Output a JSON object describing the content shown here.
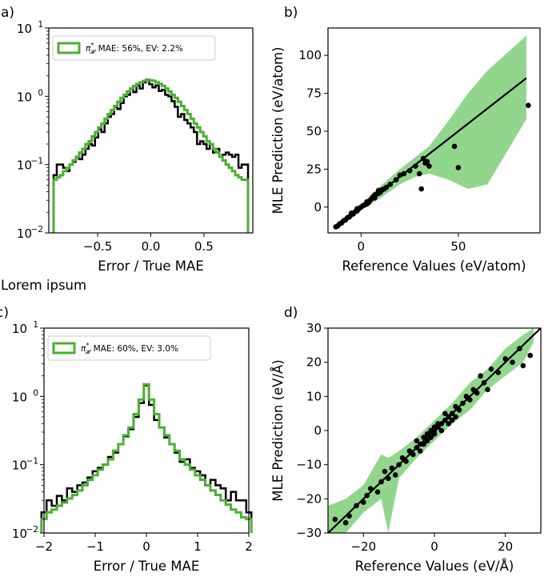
{
  "figure_note": "Lorem ipsum",
  "chart_data": [
    {
      "panel": "a)",
      "type": "line",
      "xlabel": "Error / True MAE",
      "ylabel": "",
      "xlim": [
        -0.96,
        0.96
      ],
      "ylim": [
        0.01,
        10
      ],
      "yscale": "log",
      "xticks": [
        -0.5,
        0.0,
        0.5
      ],
      "xtick_labels": [
        "−0.5",
        "0.0",
        "0.5"
      ],
      "yticks": [
        0.01,
        0.1,
        1,
        10
      ],
      "ytick_labels": [
        "10",
        "10",
        "10",
        "10"
      ],
      "ytick_exps": [
        "−2",
        "−1",
        "0",
        "1"
      ],
      "grid": false,
      "legend": {
        "position": "top-left",
        "label": "MAE: 56%, EV: 2.2%",
        "symbol": "π",
        "symbol_sup": "*",
        "symbol_sub": "𝓗"
      },
      "series": [
        {
          "name": "",
          "color": "#000000",
          "step": true,
          "x": [
            -0.9,
            -0.87,
            -0.84,
            -0.81,
            -0.78,
            -0.75,
            -0.72,
            -0.69,
            -0.66,
            -0.63,
            -0.6,
            -0.57,
            -0.54,
            -0.51,
            -0.48,
            -0.45,
            -0.42,
            -0.39,
            -0.36,
            -0.33,
            -0.3,
            -0.27,
            -0.24,
            -0.21,
            -0.18,
            -0.15,
            -0.12,
            -0.09,
            -0.06,
            -0.03,
            0.0,
            0.03,
            0.06,
            0.09,
            0.12,
            0.15,
            0.18,
            0.21,
            0.24,
            0.27,
            0.3,
            0.33,
            0.36,
            0.39,
            0.42,
            0.45,
            0.48,
            0.51,
            0.54,
            0.57,
            0.6,
            0.63,
            0.66,
            0.69,
            0.72,
            0.75,
            0.78,
            0.81,
            0.84,
            0.87,
            0.9
          ],
          "y": [
            0.07,
            0.1,
            0.1,
            0.09,
            0.08,
            0.1,
            0.11,
            0.13,
            0.12,
            0.14,
            0.17,
            0.2,
            0.19,
            0.25,
            0.33,
            0.3,
            0.4,
            0.5,
            0.55,
            0.7,
            0.65,
            0.8,
            1.0,
            1.05,
            1.3,
            1.15,
            1.45,
            1.3,
            1.6,
            1.75,
            1.5,
            1.35,
            1.45,
            1.2,
            1.25,
            1.05,
            1.0,
            0.85,
            0.7,
            0.5,
            0.55,
            0.45,
            0.4,
            0.35,
            0.3,
            0.2,
            0.22,
            0.2,
            0.17,
            0.2,
            0.15,
            0.17,
            0.13,
            0.14,
            0.15,
            0.14,
            0.13,
            0.14,
            0.09,
            0.1,
            0.1
          ]
        },
        {
          "name": "π*𝓗",
          "color": "#4daf36",
          "step": true,
          "x": [
            -0.9,
            -0.87,
            -0.84,
            -0.81,
            -0.78,
            -0.75,
            -0.72,
            -0.69,
            -0.66,
            -0.63,
            -0.6,
            -0.57,
            -0.54,
            -0.51,
            -0.48,
            -0.45,
            -0.42,
            -0.39,
            -0.36,
            -0.33,
            -0.3,
            -0.27,
            -0.24,
            -0.21,
            -0.18,
            -0.15,
            -0.12,
            -0.09,
            -0.06,
            -0.03,
            0.0,
            0.03,
            0.06,
            0.09,
            0.12,
            0.15,
            0.18,
            0.21,
            0.24,
            0.27,
            0.3,
            0.33,
            0.36,
            0.39,
            0.42,
            0.45,
            0.48,
            0.51,
            0.54,
            0.57,
            0.6,
            0.63,
            0.66,
            0.69,
            0.72,
            0.75,
            0.78,
            0.81,
            0.84,
            0.87,
            0.9
          ],
          "y": [
            0.06,
            0.065,
            0.07,
            0.08,
            0.09,
            0.1,
            0.115,
            0.13,
            0.15,
            0.17,
            0.2,
            0.22,
            0.26,
            0.3,
            0.35,
            0.4,
            0.47,
            0.55,
            0.63,
            0.72,
            0.83,
            0.95,
            1.05,
            1.18,
            1.3,
            1.42,
            1.52,
            1.6,
            1.68,
            1.72,
            1.72,
            1.68,
            1.6,
            1.52,
            1.42,
            1.3,
            1.18,
            1.05,
            0.95,
            0.83,
            0.72,
            0.63,
            0.55,
            0.47,
            0.4,
            0.35,
            0.3,
            0.26,
            0.22,
            0.2,
            0.17,
            0.15,
            0.13,
            0.115,
            0.1,
            0.09,
            0.08,
            0.07,
            0.065,
            0.06,
            0.06
          ]
        }
      ]
    },
    {
      "panel": "b)",
      "type": "scatter",
      "xlabel": "Reference Values (eV/atom)",
      "ylabel": "MLE Prediction (eV/atom)",
      "xlim": [
        -17,
        92
      ],
      "ylim": [
        -17,
        118
      ],
      "xticks": [
        0,
        50
      ],
      "yticks": [
        0,
        25,
        50,
        75,
        100
      ],
      "grid": false,
      "fit_line": [
        [
          -13,
          -13
        ],
        [
          85,
          85
        ]
      ],
      "band_upper": [
        [
          -13,
          -11
        ],
        [
          0,
          2
        ],
        [
          10,
          14
        ],
        [
          20,
          25
        ],
        [
          28,
          33
        ],
        [
          35,
          40
        ],
        [
          45,
          57
        ],
        [
          55,
          75
        ],
        [
          65,
          90
        ],
        [
          85,
          113
        ]
      ],
      "band_lower": [
        [
          -13,
          -15
        ],
        [
          0,
          -2
        ],
        [
          10,
          6
        ],
        [
          20,
          15
        ],
        [
          28,
          20
        ],
        [
          35,
          22
        ],
        [
          45,
          18
        ],
        [
          55,
          12
        ],
        [
          65,
          15
        ],
        [
          85,
          58
        ]
      ],
      "points": [
        [
          -13,
          -13
        ],
        [
          -12,
          -12.5
        ],
        [
          -11,
          -11
        ],
        [
          -10,
          -10.5
        ],
        [
          -9,
          -9
        ],
        [
          -8,
          -8.5
        ],
        [
          -7,
          -7
        ],
        [
          -6,
          -6.5
        ],
        [
          -5,
          -5
        ],
        [
          -4,
          -4.5
        ],
        [
          -3,
          -3
        ],
        [
          -2,
          -2.5
        ],
        [
          -1,
          -1
        ],
        [
          0,
          0
        ],
        [
          1,
          1
        ],
        [
          2,
          1.5
        ],
        [
          3,
          3.5
        ],
        [
          4,
          3
        ],
        [
          5,
          5
        ],
        [
          6,
          6.5
        ],
        [
          7,
          6
        ],
        [
          8,
          8.5
        ],
        [
          9,
          9
        ],
        [
          10,
          10
        ],
        [
          11,
          11.5
        ],
        [
          12,
          12
        ],
        [
          13,
          13
        ],
        [
          15,
          15
        ],
        [
          18,
          18
        ],
        [
          20,
          21
        ],
        [
          22,
          22
        ],
        [
          25,
          24
        ],
        [
          28,
          27
        ],
        [
          30,
          22
        ],
        [
          31,
          12
        ],
        [
          32,
          32
        ],
        [
          33,
          29
        ],
        [
          34,
          30
        ],
        [
          35,
          27
        ],
        [
          48,
          40
        ],
        [
          50,
          26
        ],
        [
          86,
          67
        ],
        [
          -5,
          -4
        ],
        [
          -2,
          -1
        ],
        [
          3,
          2
        ],
        [
          7,
          8
        ],
        [
          9,
          11
        ]
      ]
    },
    {
      "panel": "c)",
      "type": "line",
      "xlabel": "Error / True MAE",
      "ylabel": "",
      "xlim": [
        -2,
        2
      ],
      "ylim": [
        0.01,
        10
      ],
      "yscale": "log",
      "xticks": [
        -2,
        -1,
        0,
        1,
        2
      ],
      "xtick_labels": [
        "−2",
        "−1",
        "0",
        "1",
        "2"
      ],
      "yticks": [
        0.01,
        0.1,
        1,
        10
      ],
      "ytick_labels": [
        "10",
        "10",
        "10",
        "10"
      ],
      "ytick_exps": [
        "−2",
        "−1",
        "0",
        "1"
      ],
      "grid": false,
      "legend": {
        "position": "top-left",
        "label": "MAE: 60%, EV: 3.0%",
        "symbol": "π",
        "symbol_sup": "*",
        "symbol_sub": "𝓗"
      },
      "series": [
        {
          "name": "",
          "color": "#000000",
          "step": true,
          "x": [
            -2.0,
            -1.9,
            -1.8,
            -1.7,
            -1.6,
            -1.5,
            -1.4,
            -1.3,
            -1.2,
            -1.1,
            -1.0,
            -0.9,
            -0.8,
            -0.7,
            -0.6,
            -0.5,
            -0.4,
            -0.3,
            -0.2,
            -0.1,
            0.0,
            0.1,
            0.2,
            0.3,
            0.4,
            0.5,
            0.6,
            0.7,
            0.8,
            0.9,
            1.0,
            1.1,
            1.2,
            1.3,
            1.4,
            1.5,
            1.6,
            1.7,
            1.8,
            1.9,
            2.0
          ],
          "y": [
            0.02,
            0.03,
            0.025,
            0.035,
            0.03,
            0.045,
            0.04,
            0.05,
            0.055,
            0.065,
            0.08,
            0.09,
            0.1,
            0.13,
            0.15,
            0.2,
            0.26,
            0.33,
            0.5,
            0.8,
            1.45,
            0.75,
            0.45,
            0.35,
            0.25,
            0.2,
            0.15,
            0.11,
            0.12,
            0.09,
            0.08,
            0.07,
            0.05,
            0.06,
            0.05,
            0.045,
            0.03,
            0.04,
            0.03,
            0.03,
            0.02
          ]
        },
        {
          "name": "π*𝓗",
          "color": "#4daf36",
          "step": true,
          "x": [
            -2.0,
            -1.9,
            -1.8,
            -1.7,
            -1.6,
            -1.5,
            -1.4,
            -1.3,
            -1.2,
            -1.1,
            -1.0,
            -0.9,
            -0.8,
            -0.7,
            -0.6,
            -0.5,
            -0.4,
            -0.3,
            -0.2,
            -0.1,
            0.0,
            0.1,
            0.2,
            0.3,
            0.4,
            0.5,
            0.6,
            0.7,
            0.8,
            0.9,
            1.0,
            1.1,
            1.2,
            1.3,
            1.4,
            1.5,
            1.6,
            1.7,
            1.8,
            1.9,
            2.0
          ],
          "y": [
            0.016,
            0.02,
            0.022,
            0.025,
            0.028,
            0.032,
            0.036,
            0.042,
            0.05,
            0.06,
            0.07,
            0.085,
            0.1,
            0.12,
            0.16,
            0.2,
            0.27,
            0.35,
            0.55,
            0.9,
            1.5,
            0.9,
            0.55,
            0.35,
            0.27,
            0.2,
            0.16,
            0.12,
            0.1,
            0.085,
            0.07,
            0.06,
            0.05,
            0.042,
            0.036,
            0.03,
            0.026,
            0.022,
            0.02,
            0.017,
            0.016
          ]
        }
      ]
    },
    {
      "panel": "d)",
      "type": "scatter",
      "xlabel": "Reference Values (eV/Å)",
      "ylabel": "MLE Prediction (eV/Å)",
      "xlim": [
        -30,
        30
      ],
      "ylim": [
        -30,
        30
      ],
      "xticks": [
        -20,
        0,
        20
      ],
      "yticks": [
        -30,
        -20,
        -10,
        0,
        10,
        20,
        30
      ],
      "xtick_labels": [
        "−20",
        "0",
        "20"
      ],
      "ytick_labels": [
        "−30",
        "−20",
        "−10",
        "0",
        "10",
        "20",
        "30"
      ],
      "grid": false,
      "fit_line": [
        [
          -30,
          -30
        ],
        [
          30,
          30
        ]
      ],
      "band_upper": [
        [
          -30,
          -22
        ],
        [
          -25,
          -20
        ],
        [
          -20,
          -16
        ],
        [
          -15,
          -7
        ],
        [
          -13,
          -8
        ],
        [
          -10,
          -6
        ],
        [
          -5,
          -2
        ],
        [
          0,
          3
        ],
        [
          5,
          8
        ],
        [
          10,
          14
        ],
        [
          15,
          18
        ],
        [
          20,
          24
        ],
        [
          25,
          28
        ],
        [
          28,
          30
        ]
      ],
      "band_lower": [
        [
          -30,
          -30
        ],
        [
          -25,
          -30
        ],
        [
          -20,
          -24
        ],
        [
          -15,
          -20
        ],
        [
          -13,
          -30
        ],
        [
          -10,
          -14
        ],
        [
          -5,
          -8
        ],
        [
          0,
          -3
        ],
        [
          5,
          2
        ],
        [
          10,
          6
        ],
        [
          15,
          12
        ],
        [
          20,
          16
        ],
        [
          25,
          20
        ],
        [
          28,
          26
        ]
      ],
      "points": [
        [
          -28,
          -26
        ],
        [
          -25,
          -27
        ],
        [
          -22,
          -22
        ],
        [
          -20,
          -21
        ],
        [
          -18,
          -17
        ],
        [
          -15,
          -15
        ],
        [
          -13,
          -14
        ],
        [
          -12,
          -11
        ],
        [
          -10,
          -10
        ],
        [
          -9,
          -8
        ],
        [
          -8,
          -9
        ],
        [
          -7,
          -6
        ],
        [
          -6,
          -7
        ],
        [
          -5,
          -5
        ],
        [
          -5,
          -3
        ],
        [
          -4,
          -4
        ],
        [
          -3,
          -2
        ],
        [
          -3,
          -4
        ],
        [
          -2,
          -1
        ],
        [
          -2,
          -3
        ],
        [
          -1,
          0
        ],
        [
          -1,
          -2
        ],
        [
          0,
          0
        ],
        [
          0,
          1
        ],
        [
          0,
          -1
        ],
        [
          1,
          1
        ],
        [
          1,
          2
        ],
        [
          2,
          2
        ],
        [
          2,
          0
        ],
        [
          3,
          3
        ],
        [
          3,
          5
        ],
        [
          4,
          4
        ],
        [
          5,
          5
        ],
        [
          5,
          3
        ],
        [
          6,
          7
        ],
        [
          7,
          6
        ],
        [
          8,
          8
        ],
        [
          9,
          10
        ],
        [
          10,
          9
        ],
        [
          11,
          12
        ],
        [
          12,
          11
        ],
        [
          14,
          14
        ],
        [
          15,
          12
        ],
        [
          16,
          18
        ],
        [
          18,
          17
        ],
        [
          20,
          21
        ],
        [
          22,
          20
        ],
        [
          24,
          24
        ],
        [
          25,
          19
        ],
        [
          27,
          22
        ],
        [
          -14,
          -12
        ],
        [
          -11,
          -13
        ],
        [
          -4,
          -6
        ],
        [
          4,
          2
        ],
        [
          6,
          4
        ],
        [
          13,
          16
        ],
        [
          -16,
          -18
        ],
        [
          -19,
          -19
        ],
        [
          -24,
          -25
        ]
      ]
    }
  ]
}
